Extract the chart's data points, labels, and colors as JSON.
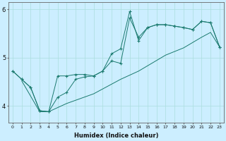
{
  "xlabel": "Humidex (Indice chaleur)",
  "bg_color": "#cceeff",
  "grid_color": "#aadddd",
  "line_color": "#1a7a6e",
  "xlim": [
    -0.5,
    23.5
  ],
  "ylim": [
    3.65,
    6.15
  ],
  "yticks": [
    4,
    5,
    6
  ],
  "xticks": [
    0,
    1,
    2,
    3,
    4,
    5,
    6,
    7,
    8,
    9,
    10,
    11,
    12,
    13,
    14,
    15,
    16,
    17,
    18,
    19,
    20,
    21,
    22,
    23
  ],
  "series": [
    {
      "x": [
        0,
        1,
        2,
        3,
        4,
        5,
        6,
        7,
        8,
        9,
        10,
        11,
        12,
        13,
        14,
        15,
        16,
        17,
        18,
        19,
        20,
        21,
        22,
        23
      ],
      "y": [
        4.72,
        4.55,
        4.38,
        3.9,
        3.88,
        4.62,
        4.62,
        4.65,
        4.65,
        4.62,
        4.72,
        4.93,
        4.88,
        5.82,
        5.42,
        5.62,
        5.68,
        5.68,
        5.65,
        5.62,
        5.58,
        5.75,
        5.72,
        5.22
      ],
      "marker": "+",
      "linestyle": "-",
      "markersize": 3.5
    },
    {
      "x": [
        0,
        1,
        2,
        3,
        4,
        5,
        6,
        7,
        8,
        9,
        10,
        11,
        12,
        13,
        14,
        15,
        16,
        17,
        18,
        19,
        20,
        21,
        22,
        23
      ],
      "y": [
        4.72,
        4.55,
        4.38,
        3.9,
        3.88,
        4.18,
        4.28,
        4.55,
        4.6,
        4.62,
        4.72,
        5.08,
        5.18,
        5.95,
        5.35,
        5.62,
        5.68,
        5.68,
        5.65,
        5.62,
        5.58,
        5.75,
        5.72,
        5.22
      ],
      "marker": "+",
      "linestyle": "-",
      "markersize": 3.5
    },
    {
      "x": [
        1,
        3,
        4,
        6,
        9,
        12,
        14,
        17,
        19,
        21,
        22,
        23
      ],
      "y": [
        4.52,
        3.88,
        3.88,
        4.05,
        4.25,
        4.55,
        4.72,
        5.05,
        5.2,
        5.42,
        5.52,
        5.22
      ],
      "marker": null,
      "linestyle": "-",
      "markersize": 0
    }
  ]
}
